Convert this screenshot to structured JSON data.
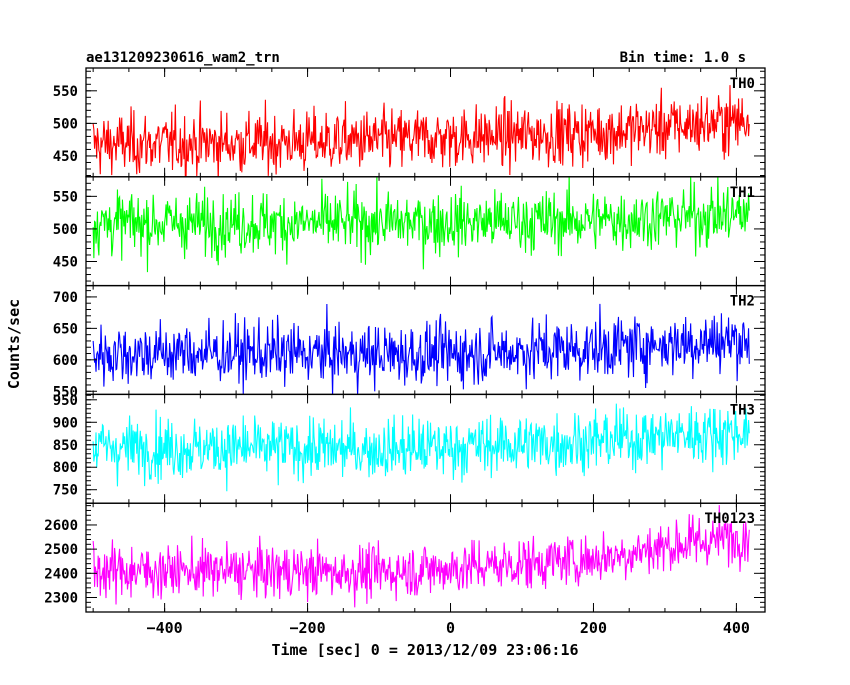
{
  "chart_data": {
    "type": "line",
    "title": "ae131209230616_wam2_trn",
    "bin_time_label": "Bin time: 1.0 s",
    "xlabel": "Time [sec] 0 = 2013/12/09 23:06:16",
    "ylabel": "Counts/sec",
    "xlim": [
      -510,
      440
    ],
    "x_ticks": [
      -400,
      -200,
      0,
      200,
      400
    ],
    "x_tick_labels": [
      "−400",
      "−200",
      "0",
      "200",
      "400"
    ],
    "x_range": [
      -500,
      418
    ],
    "panels": [
      {
        "name": "TH0",
        "color": "#ff0000",
        "ylim": [
          418,
          585
        ],
        "y_ticks": [
          450,
          500,
          550
        ],
        "trend": [
          [
            -500,
            468
          ],
          [
            -300,
            470
          ],
          [
            -100,
            474
          ],
          [
            0,
            478
          ],
          [
            200,
            486
          ],
          [
            300,
            494
          ],
          [
            418,
            506
          ]
        ],
        "noise_sd": 24
      },
      {
        "name": "TH1",
        "color": "#00ff00",
        "ylim": [
          413,
          580
        ],
        "y_ticks": [
          450,
          500,
          550
        ],
        "trend": [
          [
            -500,
            509
          ],
          [
            -200,
            509
          ],
          [
            0,
            510
          ],
          [
            200,
            513
          ],
          [
            300,
            518
          ],
          [
            418,
            523
          ]
        ],
        "noise_sd": 24
      },
      {
        "name": "TH2",
        "color": "#0000ff",
        "ylim": [
          545,
          718
        ],
        "y_ticks": [
          550,
          600,
          650,
          700
        ],
        "trend": [
          [
            -500,
            610
          ],
          [
            -300,
            611
          ],
          [
            -100,
            608
          ],
          [
            0,
            610
          ],
          [
            200,
            618
          ],
          [
            300,
            625
          ],
          [
            418,
            632
          ]
        ],
        "noise_sd": 25
      },
      {
        "name": "TH3",
        "color": "#00ffff",
        "ylim": [
          720,
          962
        ],
        "y_ticks": [
          750,
          800,
          850,
          900,
          950
        ],
        "trend": [
          [
            -500,
            845
          ],
          [
            -300,
            842
          ],
          [
            -100,
            840
          ],
          [
            0,
            845
          ],
          [
            200,
            858
          ],
          [
            300,
            870
          ],
          [
            418,
            880
          ]
        ],
        "noise_sd": 34
      },
      {
        "name": "TH0123",
        "color": "#ff00ff",
        "ylim": [
          2240,
          2690
        ],
        "y_ticks": [
          2300,
          2400,
          2500,
          2600
        ],
        "trend": [
          [
            -500,
            2410
          ],
          [
            -300,
            2410
          ],
          [
            -100,
            2405
          ],
          [
            0,
            2420
          ],
          [
            200,
            2460
          ],
          [
            300,
            2510
          ],
          [
            418,
            2560
          ]
        ],
        "noise_sd": 55
      }
    ]
  }
}
